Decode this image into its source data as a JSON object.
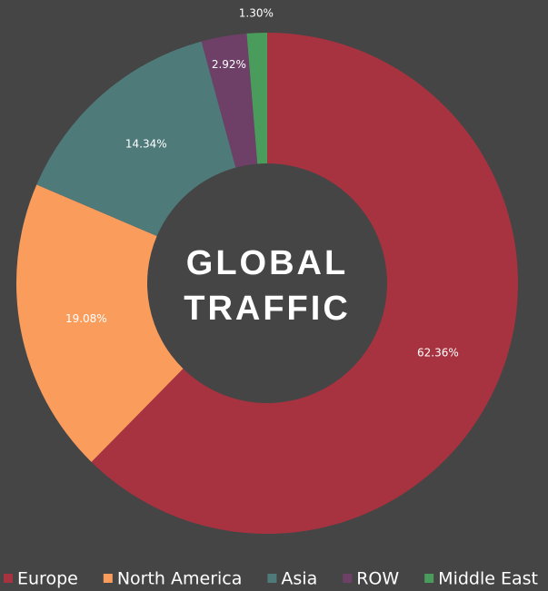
{
  "chart_data": {
    "type": "donut",
    "title": [
      "GLOBAL",
      "TRAFFIC"
    ],
    "categories": [
      "Europe",
      "North America",
      "Asia",
      "ROW",
      "Middle East"
    ],
    "values": [
      62.36,
      19.08,
      14.34,
      2.92,
      1.3
    ],
    "value_labels": [
      "62.36%",
      "19.08%",
      "14.34%",
      "2.92%",
      "1.30%"
    ],
    "colors": [
      "#a83340",
      "#fa9c5c",
      "#4f7a7a",
      "#6e4068",
      "#4a9c5c"
    ],
    "legend": "bottom"
  }
}
